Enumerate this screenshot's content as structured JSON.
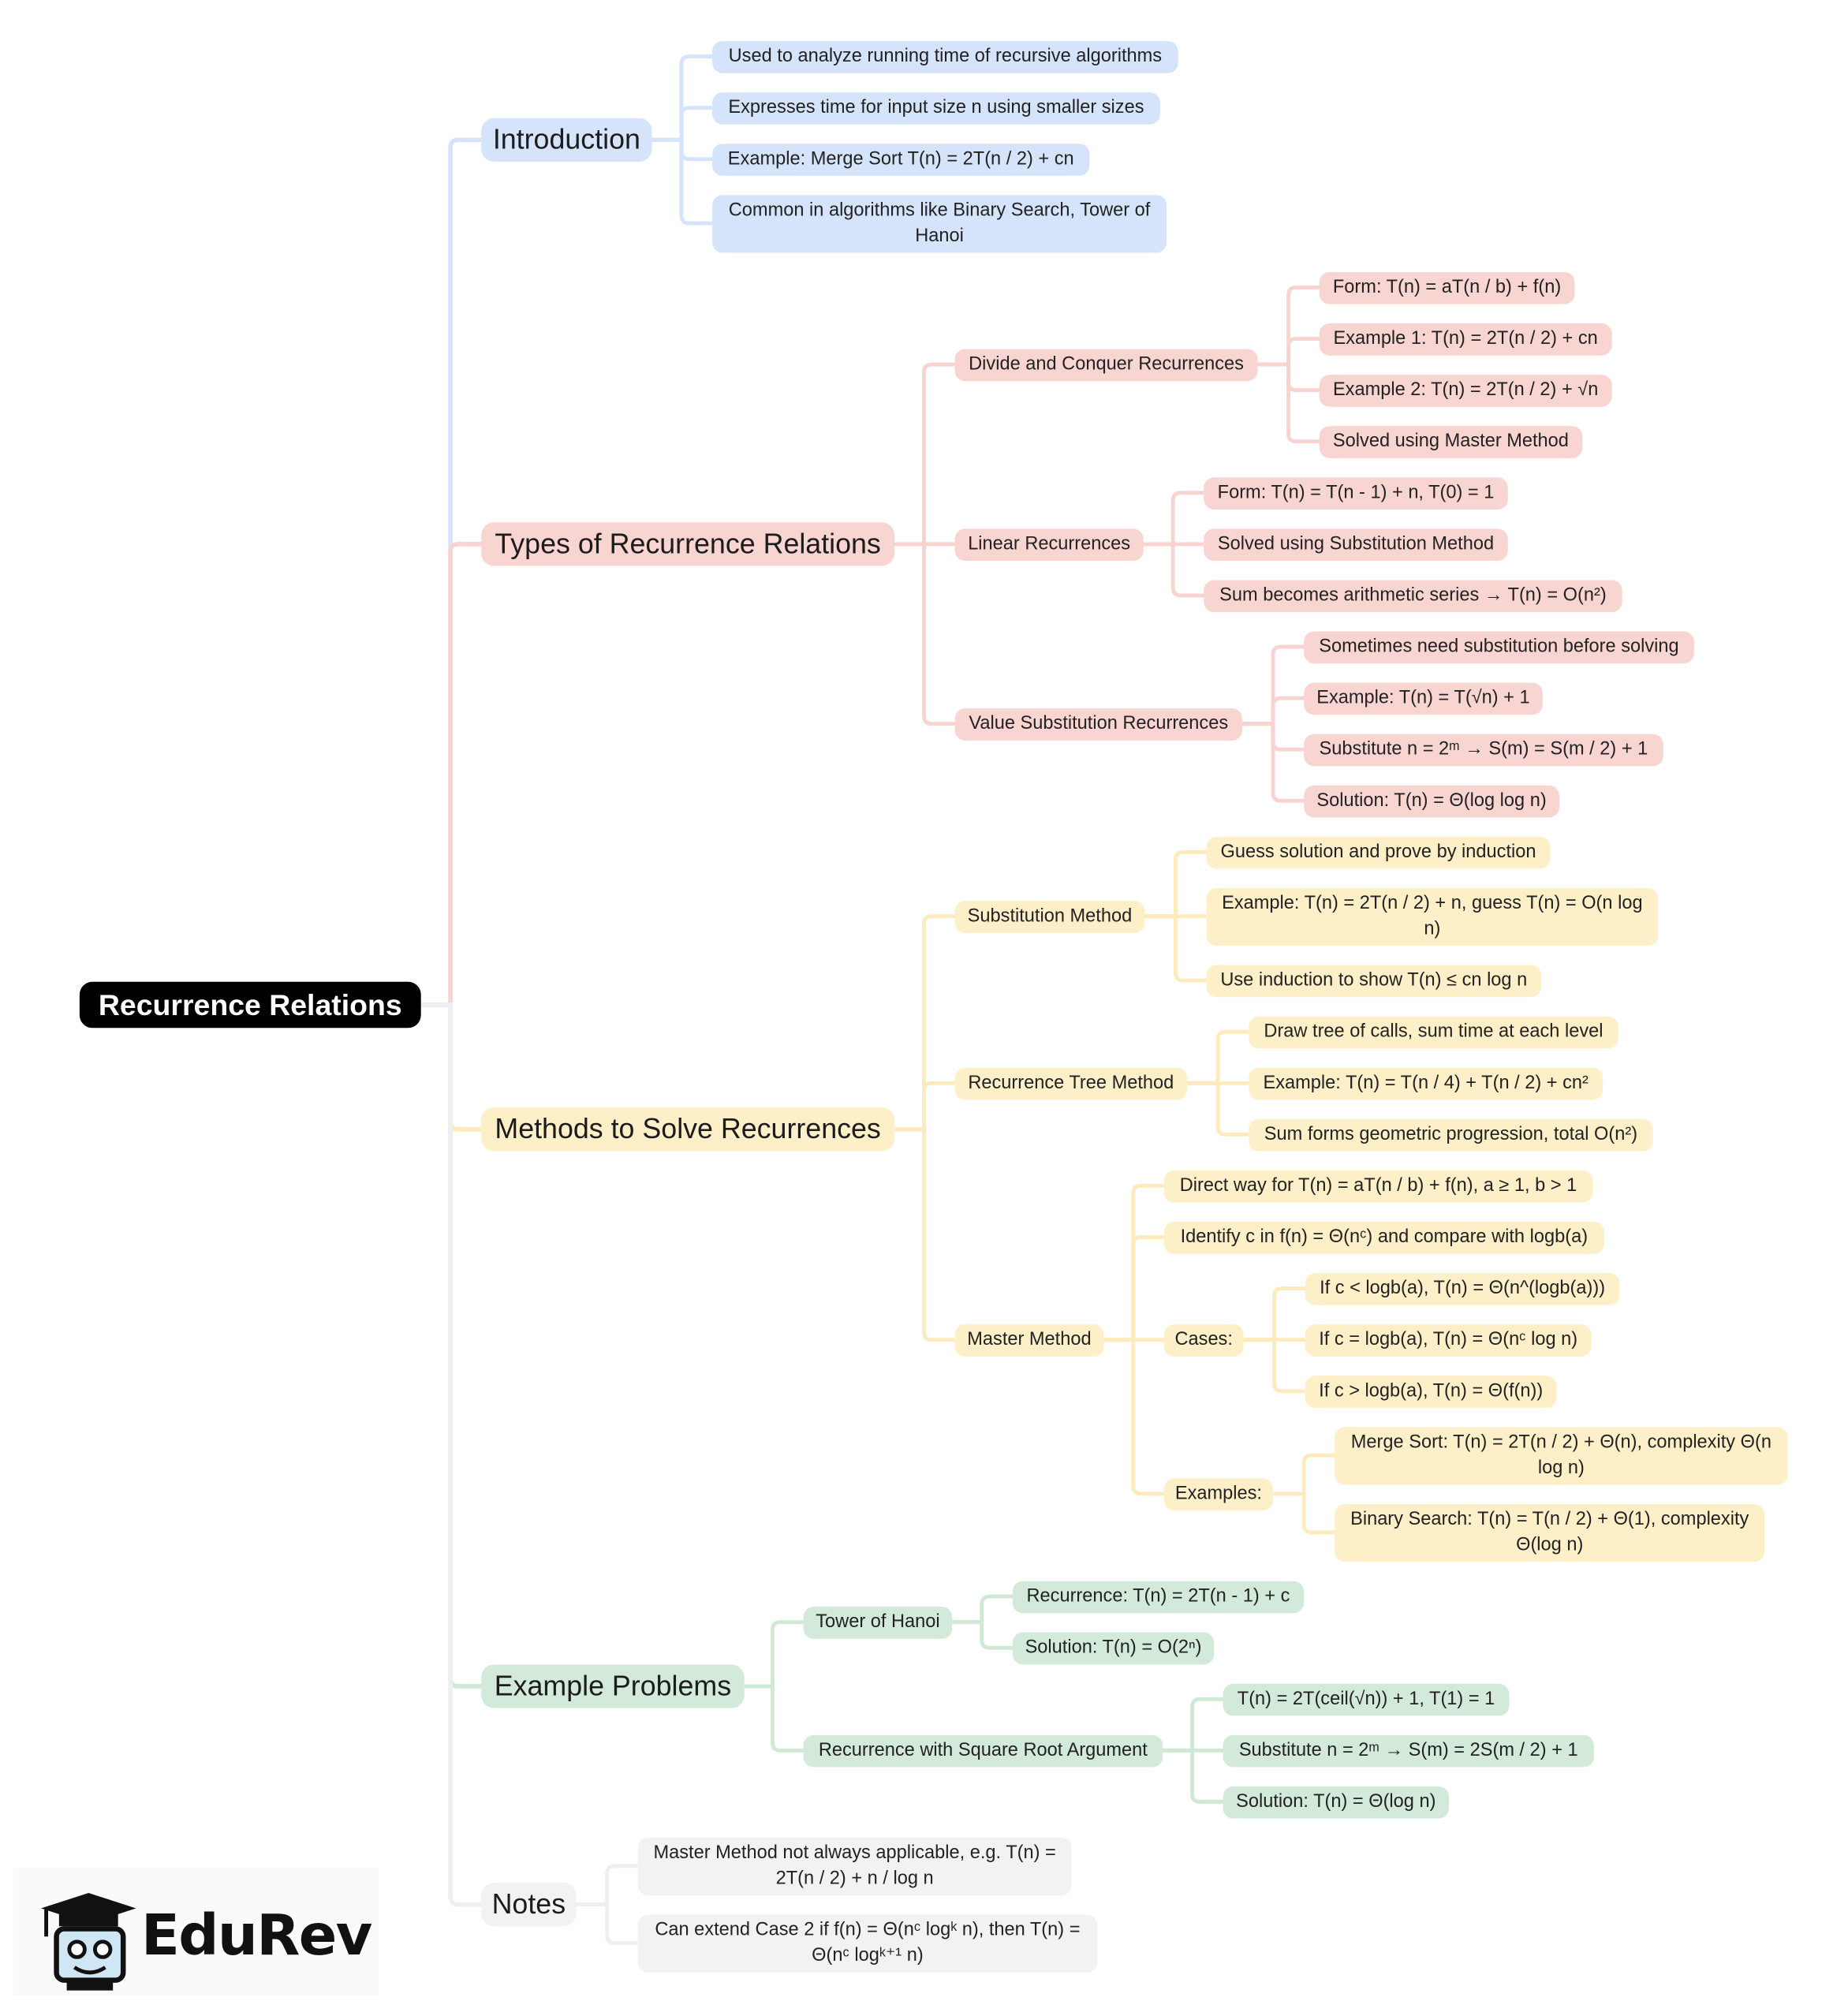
{
  "colors": {
    "root": "#000000",
    "branches": [
      {
        "node": "#d6e4fb",
        "line": "#d6e4fb"
      },
      {
        "node": "#f9d5d2",
        "line": "#f8d3cf"
      },
      {
        "node": "#fdefc7",
        "line": "#fdebbd"
      },
      {
        "node": "#d3eadb",
        "line": "#d0e8d6"
      },
      {
        "node": "#f1f2f4",
        "line": "#eeeff1"
      }
    ]
  },
  "logo": {
    "text": "EduRev",
    "icon": "graduation-cap-mascot-icon"
  },
  "tree": {
    "label": "Recurrence Relations",
    "children": [
      {
        "label": "Introduction",
        "children": [
          {
            "label": "Used to analyze running time of recursive algorithms"
          },
          {
            "label": "Expresses time for input size n using smaller sizes"
          },
          {
            "label": "Example: Merge Sort T(n) = 2T(n / 2) + cn"
          },
          {
            "label": "Common in algorithms like Binary Search, Tower of Hanoi"
          }
        ]
      },
      {
        "label": "Types of Recurrence Relations",
        "children": [
          {
            "label": "Divide and Conquer Recurrences",
            "children": [
              {
                "label": "Form: T(n) = aT(n / b) + f(n)"
              },
              {
                "label": "Example 1: T(n) = 2T(n / 2) + cn"
              },
              {
                "label": "Example 2: T(n) = 2T(n / 2) + √n"
              },
              {
                "label": "Solved using Master Method"
              }
            ]
          },
          {
            "label": "Linear Recurrences",
            "children": [
              {
                "label": "Form: T(n) = T(n - 1) + n, T(0) = 1"
              },
              {
                "label": "Solved using Substitution Method"
              },
              {
                "label": "Sum becomes arithmetic series → T(n) = O(n²)"
              }
            ]
          },
          {
            "label": "Value Substitution Recurrences",
            "children": [
              {
                "label": "Sometimes need substitution before solving"
              },
              {
                "label": "Example: T(n) = T(√n) + 1"
              },
              {
                "label": "Substitute n = 2ᵐ → S(m) = S(m / 2) + 1"
              },
              {
                "label": "Solution: T(n) = Θ(log log n)"
              }
            ]
          }
        ]
      },
      {
        "label": "Methods to Solve Recurrences",
        "children": [
          {
            "label": "Substitution Method",
            "children": [
              {
                "label": "Guess solution and prove by induction"
              },
              {
                "label": "Example: T(n) = 2T(n / 2) + n, guess T(n) = O(n log n)"
              },
              {
                "label": "Use induction to show T(n) ≤ cn log n"
              }
            ]
          },
          {
            "label": "Recurrence Tree Method",
            "children": [
              {
                "label": "Draw tree of calls, sum time at each level"
              },
              {
                "label": "Example: T(n) = T(n / 4) + T(n / 2) + cn²"
              },
              {
                "label": "Sum forms geometric progression, total O(n²)"
              }
            ]
          },
          {
            "label": "Master Method",
            "children": [
              {
                "label": "Direct way for T(n) = aT(n / b) + f(n), a ≥ 1, b > 1"
              },
              {
                "label": "Identify c in f(n) = Θ(nᶜ) and compare with logb(a)"
              },
              {
                "label": "Cases:",
                "children": [
                  {
                    "label": "If c < logb(a), T(n) = Θ(n^(logb(a)))"
                  },
                  {
                    "label": "If c = logb(a), T(n) = Θ(nᶜ log n)"
                  },
                  {
                    "label": "If c > logb(a), T(n) = Θ(f(n))"
                  }
                ]
              },
              {
                "label": "Examples:",
                "children": [
                  {
                    "label": "Merge Sort: T(n) = 2T(n / 2) + Θ(n), complexity Θ(n log n)"
                  },
                  {
                    "label": "Binary Search: T(n) = T(n / 2) + Θ(1), complexity Θ(log n)"
                  }
                ]
              }
            ]
          }
        ]
      },
      {
        "label": "Example Problems",
        "children": [
          {
            "label": "Tower of Hanoi",
            "children": [
              {
                "label": "Recurrence: T(n) = 2T(n - 1) + c"
              },
              {
                "label": "Solution: T(n) = O(2ⁿ)"
              }
            ]
          },
          {
            "label": "Recurrence with Square Root Argument",
            "children": [
              {
                "label": "T(n) = 2T(ceil(√n)) + 1, T(1) = 1"
              },
              {
                "label": "Substitute n = 2ᵐ → S(m) = 2S(m / 2) + 1"
              },
              {
                "label": "Solution: T(n) = Θ(log n)"
              }
            ]
          }
        ]
      },
      {
        "label": "Notes",
        "children": [
          {
            "label": "Master Method not always applicable, e.g. T(n) = 2T(n / 2) + n / log n"
          },
          {
            "label": "Can extend Case 2 if f(n) = Θ(nᶜ logᵏ n), then T(n) = Θ(nᶜ logᵏ⁺¹ n)"
          }
        ]
      }
    ]
  }
}
